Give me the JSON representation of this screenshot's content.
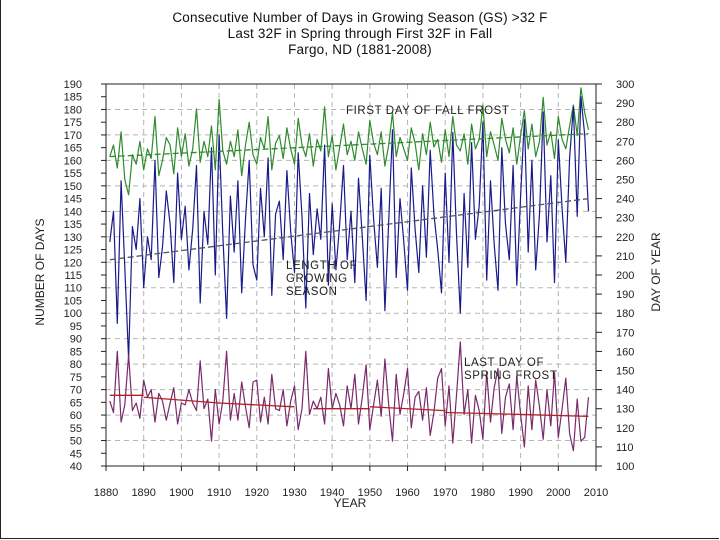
{
  "chart_data": {
    "type": "line",
    "title": "Consecutive Number of Days in Growing Season (GS) >32 F",
    "subtitle_1": "Last 32F in Spring through First 32F in Fall",
    "subtitle_2": "Fargo, ND (1881-2008)",
    "xlabel": "YEAR",
    "ylabel_left": "NUMBER OF DAYS",
    "ylabel_right": "DAY OF YEAR",
    "xlim": [
      1880,
      2010
    ],
    "ylim_left": [
      40,
      190
    ],
    "ylim_right": [
      100,
      300
    ],
    "x_ticks": [
      "1880",
      "1890",
      "1900",
      "1910",
      "1920",
      "1930",
      "1940",
      "1950",
      "1960",
      "1970",
      "1980",
      "1990",
      "2000",
      "2010"
    ],
    "y_ticks_left": [
      "40",
      "45",
      "50",
      "55",
      "60",
      "65",
      "70",
      "75",
      "80",
      "85",
      "90",
      "95",
      "100",
      "105",
      "110",
      "115",
      "120",
      "125",
      "130",
      "135",
      "140",
      "145",
      "150",
      "155",
      "160",
      "165",
      "170",
      "175",
      "180",
      "185",
      "190"
    ],
    "y_ticks_right": [
      "100",
      "110",
      "120",
      "130",
      "140",
      "150",
      "160",
      "170",
      "180",
      "190",
      "200",
      "210",
      "220",
      "230",
      "240",
      "250",
      "260",
      "270",
      "280",
      "290",
      "300"
    ],
    "annotations": {
      "fall": "FIRST DAY OF FALL FROST",
      "gs_1": "LENGTH OF",
      "gs_2": "GROWING",
      "gs_3": "SEASON",
      "spring_1": "LAST DAY OF",
      "spring_2": "SPRING FROST"
    },
    "colors": {
      "fall": "#2e8b2e",
      "growing": "#1a1a8c",
      "spring": "#7a2a6a",
      "spring_trend": "#b22222",
      "trend": "#555555",
      "grid": "#b5b5b5"
    },
    "series": [
      {
        "name": "First day of fall frost",
        "axis": "right",
        "x": [
          1881,
          1882,
          1883,
          1884,
          1885,
          1886,
          1887,
          1888,
          1889,
          1890,
          1891,
          1892,
          1893,
          1894,
          1895,
          1896,
          1897,
          1898,
          1899,
          1900,
          1901,
          1902,
          1903,
          1904,
          1905,
          1906,
          1907,
          1908,
          1909,
          1910,
          1911,
          1912,
          1913,
          1914,
          1915,
          1916,
          1917,
          1918,
          1919,
          1920,
          1921,
          1922,
          1923,
          1924,
          1925,
          1926,
          1927,
          1928,
          1929,
          1930,
          1931,
          1932,
          1933,
          1934,
          1935,
          1936,
          1937,
          1938,
          1939,
          1940,
          1941,
          1942,
          1943,
          1944,
          1945,
          1946,
          1947,
          1948,
          1949,
          1950,
          1951,
          1952,
          1953,
          1954,
          1955,
          1956,
          1957,
          1958,
          1959,
          1960,
          1961,
          1962,
          1963,
          1964,
          1965,
          1966,
          1967,
          1968,
          1969,
          1970,
          1971,
          1972,
          1973,
          1974,
          1975,
          1976,
          1977,
          1978,
          1979,
          1980,
          1981,
          1982,
          1983,
          1984,
          1985,
          1986,
          1987,
          1988,
          1989,
          1990,
          1991,
          1992,
          1993,
          1994,
          1995,
          1996,
          1997,
          1998,
          1999,
          2000,
          2001,
          2002,
          2003,
          2004,
          2005,
          2006,
          2007,
          2008
        ],
        "values": [
          262,
          268,
          256,
          275,
          250,
          242,
          263,
          258,
          270,
          255,
          266,
          261,
          283,
          252,
          260,
          272,
          268,
          253,
          277,
          262,
          274,
          257,
          266,
          287,
          259,
          270,
          262,
          278,
          255,
          292,
          265,
          258,
          270,
          262,
          276,
          252,
          268,
          280,
          263,
          258,
          272,
          266,
          283,
          255,
          269,
          273,
          261,
          277,
          266,
          258,
          282,
          268,
          262,
          274,
          257,
          271,
          265,
          288,
          262,
          273,
          255,
          267,
          279,
          263,
          270,
          260,
          275,
          266,
          258,
          281,
          269,
          263,
          275,
          257,
          268,
          285,
          262,
          272,
          266,
          260,
          277,
          269,
          255,
          274,
          263,
          280,
          267,
          271,
          259,
          276,
          262,
          283,
          268,
          265,
          274,
          258,
          279,
          266,
          271,
          289,
          262,
          275,
          268,
          260,
          282,
          271,
          264,
          277,
          258,
          273,
          286,
          266,
          279,
          262,
          270,
          293,
          268,
          275,
          261,
          283,
          271,
          266,
          278,
          289,
          273,
          298,
          285,
          276
        ]
      },
      {
        "name": "Length of growing season",
        "axis": "left",
        "x": [
          1881,
          1882,
          1883,
          1884,
          1885,
          1886,
          1887,
          1888,
          1889,
          1890,
          1891,
          1892,
          1893,
          1894,
          1895,
          1896,
          1897,
          1898,
          1899,
          1900,
          1901,
          1902,
          1903,
          1904,
          1905,
          1906,
          1907,
          1908,
          1909,
          1910,
          1911,
          1912,
          1913,
          1914,
          1915,
          1916,
          1917,
          1918,
          1919,
          1920,
          1921,
          1922,
          1923,
          1924,
          1925,
          1926,
          1927,
          1928,
          1929,
          1930,
          1931,
          1932,
          1933,
          1934,
          1935,
          1936,
          1937,
          1938,
          1939,
          1940,
          1941,
          1942,
          1943,
          1944,
          1945,
          1946,
          1947,
          1948,
          1949,
          1950,
          1951,
          1952,
          1953,
          1954,
          1955,
          1956,
          1957,
          1958,
          1959,
          1960,
          1961,
          1962,
          1963,
          1964,
          1965,
          1966,
          1967,
          1968,
          1969,
          1970,
          1971,
          1972,
          1973,
          1974,
          1975,
          1976,
          1977,
          1978,
          1979,
          1980,
          1981,
          1982,
          1983,
          1984,
          1985,
          1986,
          1987,
          1988,
          1989,
          1990,
          1991,
          1992,
          1993,
          1994,
          1995,
          1996,
          1997,
          1998,
          1999,
          2000,
          2001,
          2002,
          2003,
          2004,
          2005,
          2006,
          2007,
          2008
        ],
        "values": [
          128,
          140,
          96,
          152,
          118,
          82,
          134,
          125,
          145,
          110,
          130,
          121,
          160,
          114,
          126,
          148,
          135,
          112,
          155,
          129,
          142,
          117,
          133,
          158,
          104,
          140,
          127,
          165,
          115,
          170,
          131,
          98,
          146,
          124,
          152,
          108,
          137,
          160,
          119,
          113,
          149,
          130,
          161,
          107,
          139,
          144,
          121,
          156,
          132,
          116,
          163,
          138,
          102,
          147,
          123,
          141,
          129,
          166,
          111,
          143,
          117,
          135,
          158,
          121,
          140,
          112,
          153,
          130,
          105,
          162,
          137,
          118,
          149,
          101,
          136,
          172,
          114,
          145,
          128,
          109,
          157,
          133,
          116,
          150,
          122,
          164,
          139,
          125,
          108,
          155,
          120,
          171,
          131,
          100,
          147,
          118,
          167,
          129,
          142,
          175,
          113,
          152,
          127,
          109,
          165,
          135,
          121,
          158,
          111,
          146,
          176,
          124,
          160,
          117,
          139,
          179,
          128,
          154,
          112,
          168,
          141,
          120,
          161,
          181,
          138,
          185,
          170,
          140
        ]
      },
      {
        "name": "Last day of spring frost",
        "axis": "right",
        "x": [
          1881,
          1882,
          1883,
          1884,
          1885,
          1886,
          1887,
          1888,
          1889,
          1890,
          1891,
          1892,
          1893,
          1894,
          1895,
          1896,
          1897,
          1898,
          1899,
          1900,
          1901,
          1902,
          1903,
          1904,
          1905,
          1906,
          1907,
          1908,
          1909,
          1910,
          1911,
          1912,
          1913,
          1914,
          1915,
          1916,
          1917,
          1918,
          1919,
          1920,
          1921,
          1922,
          1923,
          1924,
          1925,
          1926,
          1927,
          1928,
          1929,
          1930,
          1931,
          1932,
          1933,
          1934,
          1935,
          1936,
          1937,
          1938,
          1939,
          1940,
          1941,
          1942,
          1943,
          1944,
          1945,
          1946,
          1947,
          1948,
          1949,
          1950,
          1951,
          1952,
          1953,
          1954,
          1955,
          1956,
          1957,
          1958,
          1959,
          1960,
          1961,
          1962,
          1963,
          1964,
          1965,
          1966,
          1967,
          1968,
          1969,
          1970,
          1971,
          1972,
          1973,
          1974,
          1975,
          1976,
          1977,
          1978,
          1979,
          1980,
          1981,
          1982,
          1983,
          1984,
          1985,
          1986,
          1987,
          1988,
          1989,
          1990,
          1991,
          1992,
          1993,
          1994,
          1995,
          1996,
          1997,
          1998,
          1999,
          2000,
          2001,
          2002,
          2003,
          2004,
          2005,
          2006,
          2007,
          2008
        ],
        "values": [
          134,
          128,
          160,
          123,
          132,
          158,
          129,
          133,
          125,
          145,
          136,
          140,
          123,
          138,
          134,
          124,
          133,
          141,
          122,
          133,
          132,
          140,
          133,
          129,
          155,
          130,
          135,
          113,
          140,
          122,
          134,
          160,
          124,
          138,
          124,
          144,
          131,
          120,
          144,
          145,
          123,
          136,
          122,
          148,
          130,
          129,
          140,
          121,
          134,
          142,
          119,
          130,
          160,
          127,
          134,
          130,
          136,
          122,
          151,
          130,
          138,
          132,
          121,
          142,
          130,
          148,
          122,
          136,
          153,
          119,
          132,
          145,
          126,
          156,
          132,
          113,
          148,
          127,
          138,
          151,
          120,
          136,
          139,
          124,
          141,
          116,
          128,
          146,
          151,
          121,
          142,
          112,
          137,
          165,
          127,
          140,
          112,
          137,
          129,
          114,
          149,
          123,
          141,
          151,
          117,
          136,
          143,
          119,
          147,
          127,
          110,
          142,
          119,
          145,
          131,
          114,
          140,
          121,
          149,
          115,
          130,
          146,
          117,
          108,
          135,
          113,
          115,
          136
        ]
      }
    ],
    "trend_lines": [
      {
        "name": "Fall frost trend",
        "axis": "right",
        "x": [
          1881,
          2008
        ],
        "values": [
          262,
          274
        ]
      },
      {
        "name": "Growing season trend",
        "axis": "left",
        "x": [
          1881,
          2008
        ],
        "values": [
          121,
          145
        ]
      },
      {
        "name": "Spring frost trend",
        "axis": "right",
        "segments": [
          {
            "x": [
              1881,
              1890
            ],
            "values": [
              137,
              137
            ]
          },
          {
            "x": [
              1890,
              1910
            ],
            "values": [
              136,
              133
            ]
          },
          {
            "x": [
              1910,
              1930
            ],
            "values": [
              133,
              131
            ]
          },
          {
            "x": [
              1935,
              1950
            ],
            "values": [
              130,
              130
            ]
          },
          {
            "x": [
              1950,
              1970
            ],
            "values": [
              131,
              129
            ]
          },
          {
            "x": [
              1970,
              1990
            ],
            "values": [
              128,
              127
            ]
          },
          {
            "x": [
              1990,
              2008
            ],
            "values": [
              127,
              126
            ]
          }
        ]
      }
    ]
  }
}
